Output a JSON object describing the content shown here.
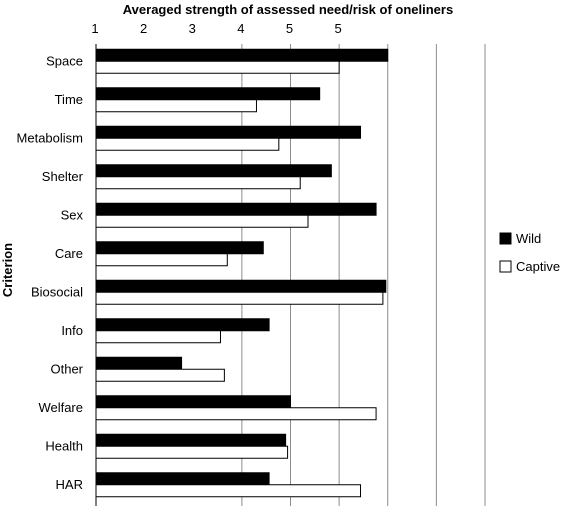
{
  "chart_data": {
    "type": "bar",
    "orientation": "horizontal",
    "title": "Averaged strength of assessed need/risk of oneliners",
    "xlabel": "",
    "ylabel": "Criterion",
    "xlim": [
      1,
      5
    ],
    "x_tick_labels": [
      "1",
      "2",
      "3",
      "4",
      "5",
      "5"
    ],
    "grid": true,
    "legend_position": "right",
    "categories": [
      "Space",
      "Time",
      "Metabolism",
      "Shelter",
      "Sex",
      "Care",
      "Biosocial",
      "Info",
      "Other",
      "Welfare",
      "Health",
      "HAR"
    ],
    "series": [
      {
        "name": "Wild",
        "color": "#000000",
        "values": [
          4.0,
          3.3,
          3.72,
          3.42,
          3.88,
          2.72,
          3.98,
          2.78,
          1.88,
          3.0,
          2.95,
          2.78
        ]
      },
      {
        "name": "Captive",
        "color": "#ffffff",
        "values": [
          3.5,
          2.65,
          2.88,
          3.1,
          3.18,
          2.35,
          3.95,
          2.28,
          2.32,
          3.88,
          2.97,
          3.72
        ]
      }
    ]
  }
}
